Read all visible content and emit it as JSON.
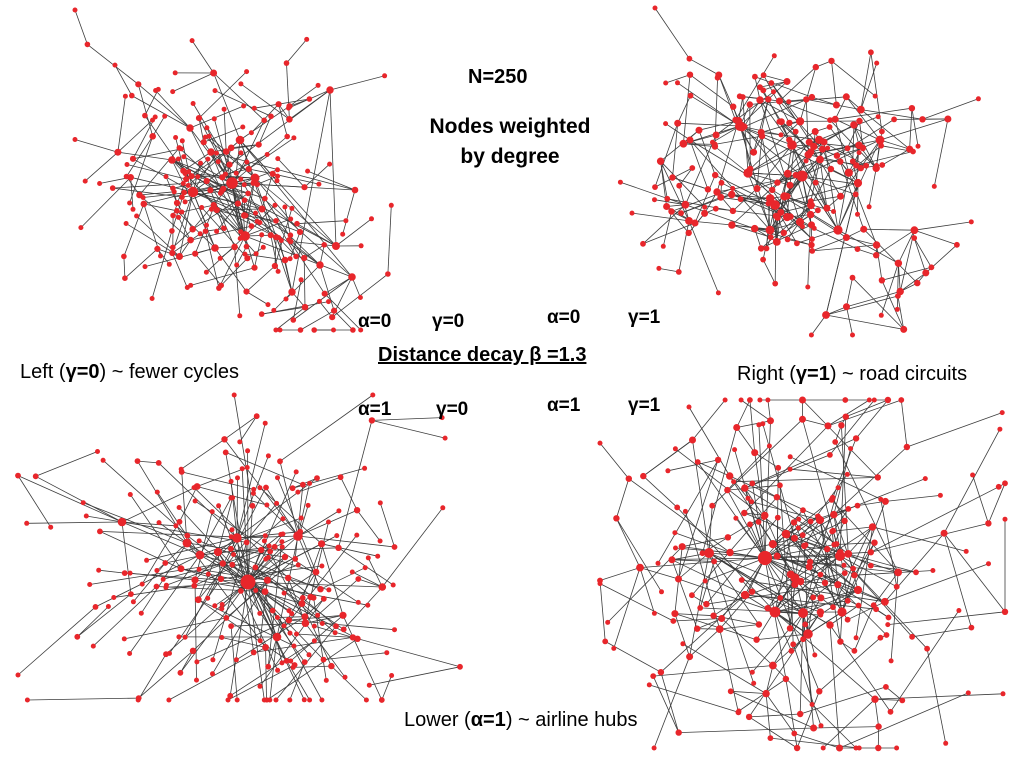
{
  "header": {
    "n_label": "N=250",
    "nodes_label": "Nodes weighted by degree"
  },
  "panels": {
    "top_left": {
      "alpha": "α=0",
      "gamma": "γ=0"
    },
    "top_right": {
      "alpha": "α=0",
      "gamma": "γ=1"
    },
    "bottom_left": {
      "alpha": "α=1",
      "gamma": "γ=0"
    },
    "bottom_right": {
      "alpha": "α=1",
      "gamma": "γ=1"
    }
  },
  "center_label": "Distance decay β =1.3",
  "captions": {
    "left": {
      "prefix": "Left (",
      "bold": "γ=0",
      "suffix": ") ~ fewer cycles"
    },
    "right": {
      "prefix": "Right (",
      "bold": "γ=1",
      "suffix": ") ~ road circuits"
    },
    "lower": {
      "prefix": "Lower (",
      "bold": "α=1",
      "suffix": ") ~ airline hubs"
    }
  },
  "colors": {
    "node": "#e8262b",
    "edge": "#3c3c3c",
    "background": "#ffffff"
  }
}
